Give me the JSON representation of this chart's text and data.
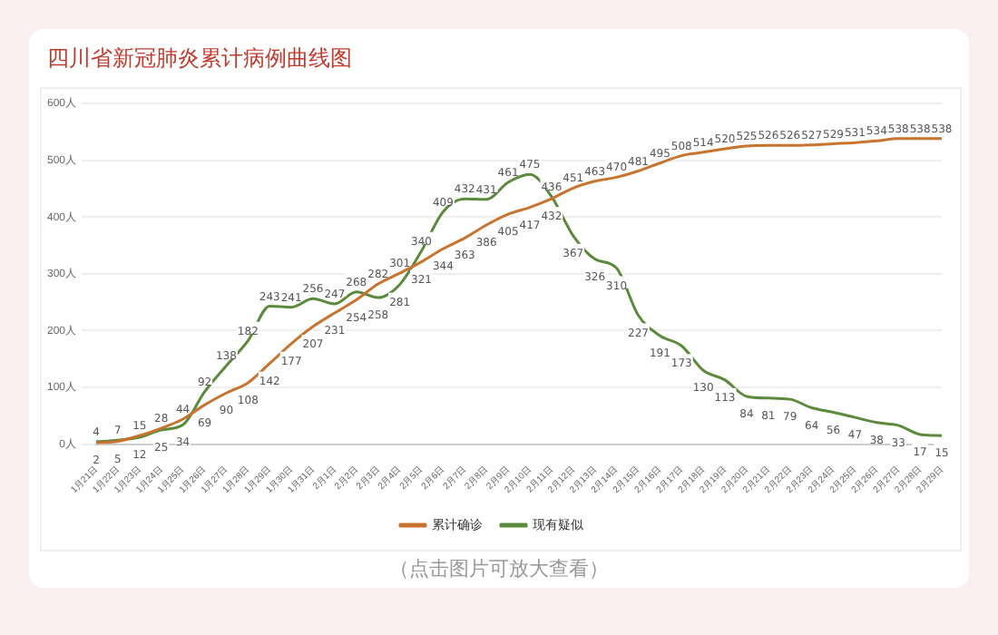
{
  "chart_data": {
    "type": "line",
    "title": "四川省新冠肺炎累计病例曲线图",
    "categories": [
      "1月21日",
      "1月22日",
      "1月23日",
      "1月24日",
      "1月25日",
      "1月26日",
      "1月27日",
      "1月28日",
      "1月29日",
      "1月30日",
      "1月31日",
      "2月1日",
      "2月2日",
      "2月3日",
      "2月4日",
      "2月5日",
      "2月6日",
      "2月7日",
      "2月8日",
      "2月9日",
      "2月10日",
      "2月11日",
      "2月12日",
      "2月13日",
      "2月14日",
      "2月15日",
      "2月16日",
      "2月17日",
      "2月18日",
      "2月19日",
      "2月20日",
      "2月21日",
      "2月22日",
      "2月23日",
      "2月24日",
      "2月25日",
      "2月26日",
      "2月27日",
      "2月28日",
      "2月29日"
    ],
    "series": [
      {
        "name": "累计确诊",
        "color": "#c8732e",
        "values": [
          2,
          5,
          15,
          28,
          44,
          69,
          90,
          108,
          142,
          177,
          207,
          231,
          254,
          282,
          301,
          321,
          344,
          363,
          386,
          405,
          417,
          432,
          451,
          463,
          470,
          481,
          495,
          508,
          514,
          520,
          525,
          526,
          526,
          527,
          529,
          531,
          534,
          538,
          538,
          538
        ]
      },
      {
        "name": "现有疑似",
        "color": "#5b8a3c",
        "values": [
          4,
          7,
          12,
          25,
          34,
          92,
          138,
          182,
          243,
          241,
          256,
          247,
          268,
          258,
          281,
          340,
          409,
          432,
          431,
          461,
          475,
          436,
          367,
          326,
          310,
          227,
          191,
          173,
          130,
          113,
          84,
          81,
          79,
          64,
          56,
          47,
          38,
          33,
          17,
          15
        ]
      }
    ],
    "ylim": [
      0,
      600
    ],
    "yticks": [
      {
        "value": 0,
        "label": "0人"
      },
      {
        "value": 100,
        "label": "100人"
      },
      {
        "value": 200,
        "label": "200人"
      },
      {
        "value": 300,
        "label": "300人"
      },
      {
        "value": 400,
        "label": "400人"
      },
      {
        "value": 500,
        "label": "500人"
      },
      {
        "value": 600,
        "label": "600人"
      }
    ],
    "grid": "y",
    "legend": "bottom",
    "marker": "none",
    "line_style": "solid",
    "data_labels": true,
    "annotations": [
      "（点击图片可放大查看）"
    ]
  }
}
